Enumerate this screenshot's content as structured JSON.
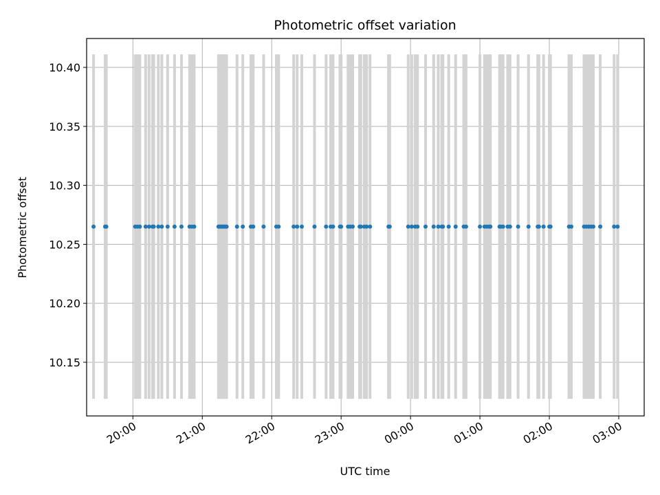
{
  "chart_data": {
    "type": "scatter",
    "title": "Photometric offset variation",
    "xlabel": "UTC time",
    "ylabel": "Photometric offset",
    "x_axis_kind": "time",
    "xlim": [
      "2022-01-01 19:20",
      "2022-01-02 03:22"
    ],
    "ylim": [
      10.1045,
      10.4245
    ],
    "grid": true,
    "legend": "none",
    "x_ticks": [
      "20:00",
      "21:00",
      "22:00",
      "23:00",
      "00:00",
      "01:00",
      "02:00",
      "03:00"
    ],
    "x_tick_times": [
      "2022-01-01 20:00",
      "2022-01-01 21:00",
      "2022-01-01 22:00",
      "2022-01-01 23:00",
      "2022-01-02 00:00",
      "2022-01-02 01:00",
      "2022-01-02 02:00",
      "2022-01-02 03:00"
    ],
    "y_ticks": [
      "10.15",
      "10.20",
      "10.25",
      "10.30",
      "10.35",
      "10.40"
    ],
    "y_tick_values": [
      10.15,
      10.2,
      10.25,
      10.3,
      10.35,
      10.4
    ],
    "error_bar_range": [
      10.119,
      10.411
    ],
    "series": [
      {
        "color": "#1f77b4",
        "errorbar_color": "#d3d3d3",
        "y_value": 10.265,
        "x": [
          "2022-01-01 19:26",
          "2022-01-01 19:36",
          "2022-01-01 19:37",
          "2022-01-01 20:02",
          "2022-01-01 20:04",
          "2022-01-01 20:06",
          "2022-01-01 20:11",
          "2022-01-01 20:14",
          "2022-01-01 20:17",
          "2022-01-01 20:18",
          "2022-01-01 20:22",
          "2022-01-01 20:25",
          "2022-01-01 20:30",
          "2022-01-01 20:36",
          "2022-01-01 20:42",
          "2022-01-01 20:49",
          "2022-01-01 20:51",
          "2022-01-01 20:53",
          "2022-01-01 21:14",
          "2022-01-01 21:15",
          "2022-01-01 21:16",
          "2022-01-01 21:17",
          "2022-01-01 21:18",
          "2022-01-01 21:19",
          "2022-01-01 21:20",
          "2022-01-01 21:21",
          "2022-01-01 21:30",
          "2022-01-01 21:35",
          "2022-01-01 21:42",
          "2022-01-01 21:44",
          "2022-01-01 21:53",
          "2022-01-01 22:04",
          "2022-01-01 22:06",
          "2022-01-01 22:19",
          "2022-01-01 22:22",
          "2022-01-01 22:26",
          "2022-01-01 22:37",
          "2022-01-01 22:47",
          "2022-01-01 22:51",
          "2022-01-01 22:53",
          "2022-01-01 22:59",
          "2022-01-01 23:00",
          "2022-01-01 23:06",
          "2022-01-01 23:08",
          "2022-01-01 23:10",
          "2022-01-01 23:16",
          "2022-01-01 23:17",
          "2022-01-01 23:20",
          "2022-01-01 23:22",
          "2022-01-01 23:25",
          "2022-01-01 23:41",
          "2022-01-01 23:42",
          "2022-01-01 23:58",
          "2022-01-02 00:01",
          "2022-01-02 00:04",
          "2022-01-02 00:06",
          "2022-01-02 00:13",
          "2022-01-02 00:20",
          "2022-01-02 00:24",
          "2022-01-02 00:27",
          "2022-01-02 00:28",
          "2022-01-02 00:33",
          "2022-01-02 00:39",
          "2022-01-02 00:46",
          "2022-01-02 00:48",
          "2022-01-02 01:00",
          "2022-01-02 01:04",
          "2022-01-02 01:06",
          "2022-01-02 01:08",
          "2022-01-02 01:09",
          "2022-01-02 01:17",
          "2022-01-02 01:18",
          "2022-01-02 01:20",
          "2022-01-02 01:24",
          "2022-01-02 01:26",
          "2022-01-02 01:33",
          "2022-01-02 01:42",
          "2022-01-02 01:50",
          "2022-01-02 01:51",
          "2022-01-02 01:55",
          "2022-01-02 02:00",
          "2022-01-02 02:01",
          "2022-01-02 02:17",
          "2022-01-02 02:19",
          "2022-01-02 02:30",
          "2022-01-02 02:32",
          "2022-01-02 02:34",
          "2022-01-02 02:36",
          "2022-01-02 02:38",
          "2022-01-02 02:44",
          "2022-01-02 02:56",
          "2022-01-02 02:59"
        ]
      }
    ]
  }
}
